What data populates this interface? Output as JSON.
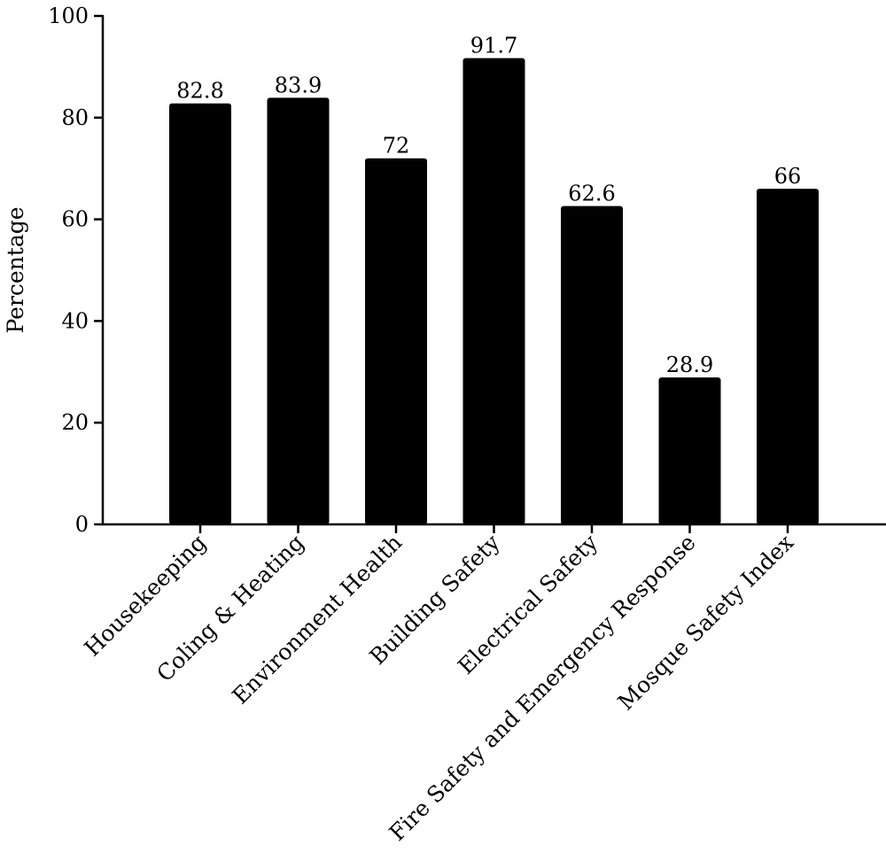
{
  "chart_data": {
    "type": "bar",
    "title": "",
    "xlabel": "",
    "ylabel": "Percentage",
    "ylim": [
      0,
      100
    ],
    "yticks": [
      0,
      20,
      40,
      60,
      80,
      100
    ],
    "grid": false,
    "legend": "none",
    "bar_color": "#000000",
    "categories": [
      "Housekeeping",
      "Coling & Heating",
      "Environment Health",
      "Building Safety",
      "Electrical Safety",
      "Fire Safety and Emergency Response",
      "Mosque Safety Index"
    ],
    "values": [
      82.8,
      83.9,
      72,
      91.7,
      62.6,
      28.9,
      66
    ],
    "value_labels": [
      "82.8",
      "83.9",
      "72",
      "91.7",
      "62.6",
      "28.9",
      "66"
    ]
  }
}
